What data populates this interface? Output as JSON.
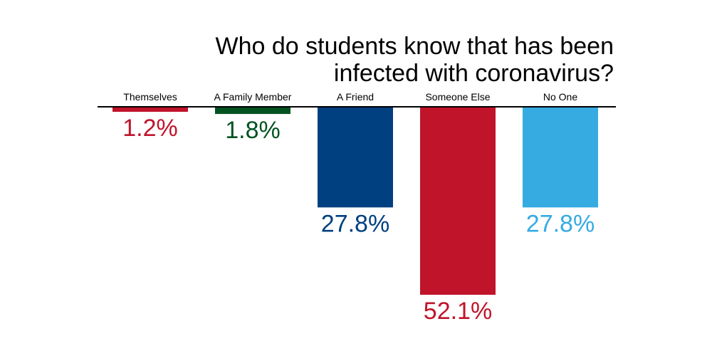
{
  "chart_data": {
    "type": "bar",
    "title_lines": [
      "Who do students know that has been",
      "infected with coronavirus?"
    ],
    "categories": [
      "Themselves",
      "A Family Member",
      "A Friend",
      "Someone Else",
      "No One"
    ],
    "values": [
      1.2,
      1.8,
      27.8,
      52.1,
      27.8
    ],
    "value_labels": [
      "1.2%",
      "1.8%",
      "27.8%",
      "52.1%",
      "27.8%"
    ],
    "colors": [
      "#c0142b",
      "#005321",
      "#004080",
      "#c0142b",
      "#35abe2"
    ],
    "orientation": "downward",
    "grid": false,
    "legend": "none",
    "ylim": [
      0,
      52.1
    ]
  }
}
